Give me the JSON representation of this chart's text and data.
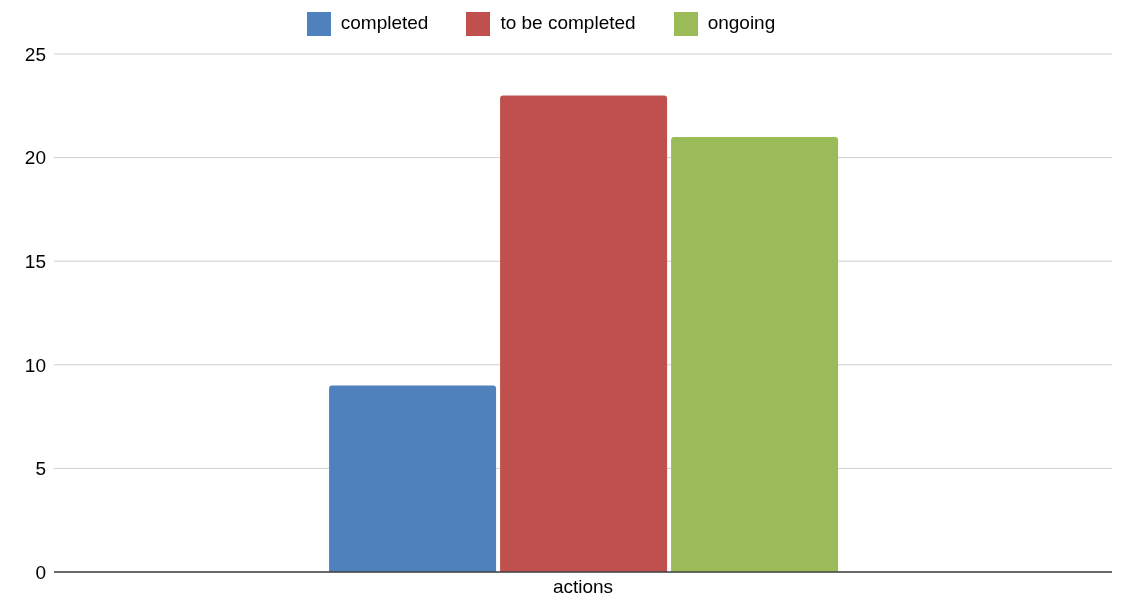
{
  "chart_data": {
    "type": "bar",
    "categories": [
      "actions"
    ],
    "series": [
      {
        "name": "completed",
        "color": "#4f81bd",
        "values": [
          9
        ]
      },
      {
        "name": "to be completed",
        "color": "#c0504d",
        "values": [
          23
        ]
      },
      {
        "name": "ongoing",
        "color": "#9bbb59",
        "values": [
          21
        ]
      }
    ],
    "ylim": [
      0,
      25
    ],
    "yticks": [
      0,
      5,
      10,
      15,
      20,
      25
    ],
    "grid": "y",
    "legend": "top"
  }
}
